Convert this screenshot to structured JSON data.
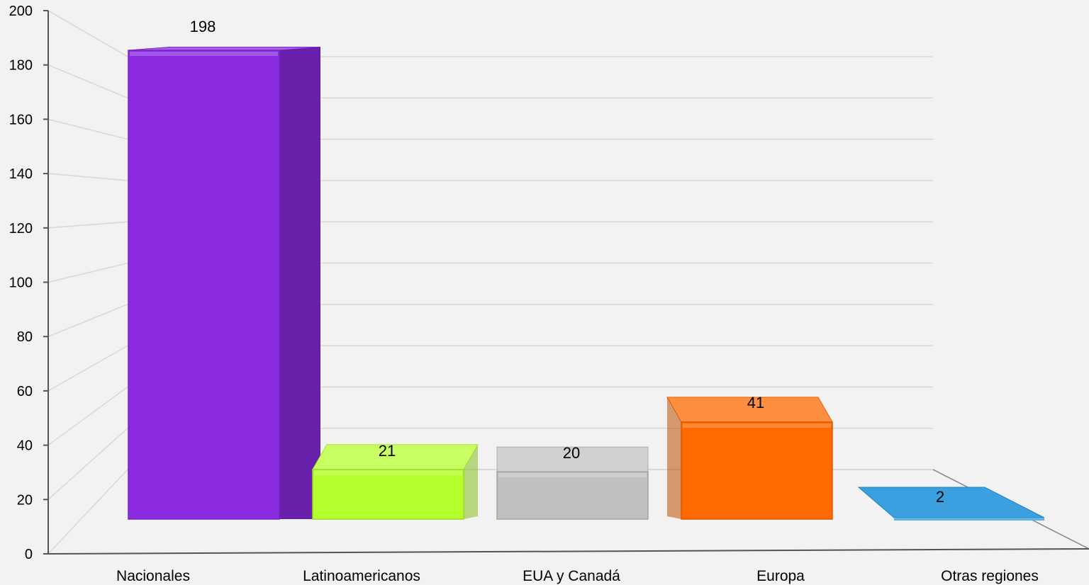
{
  "chart_data": {
    "type": "bar",
    "categories": [
      "Nacionales",
      "Latinoamericanos",
      "EUA y Canadá",
      "Europa",
      "Otras regiones"
    ],
    "values": [
      198,
      21,
      20,
      41,
      2
    ],
    "data_labels": [
      "198",
      "21",
      "20",
      "41",
      "2"
    ],
    "title": "",
    "xlabel": "",
    "ylabel": "",
    "ylim": [
      0,
      200
    ],
    "yticks": [
      0,
      20,
      40,
      60,
      80,
      100,
      120,
      140,
      160,
      180,
      200
    ],
    "grid": true,
    "legend": "none",
    "style": "3d-perspective",
    "colors": [
      "#8a2be2",
      "#b5ff2e",
      "#c0c0c0",
      "#ff6a00",
      "#3aa0e0"
    ]
  }
}
